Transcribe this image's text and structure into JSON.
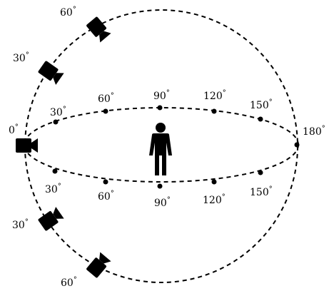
{
  "diagram": {
    "degree_symbol": "°",
    "equator_top_labels": [
      "30",
      "60",
      "90",
      "120",
      "150"
    ],
    "equator_bottom_labels": [
      "30",
      "60",
      "90",
      "120",
      "150"
    ],
    "meridian_upper_labels": [
      "30",
      "60"
    ],
    "meridian_lower_labels": [
      "30",
      "60"
    ],
    "left_label": "0",
    "right_label": "180",
    "icons": {
      "person": "person-icon",
      "camera": "video-camera-icon"
    }
  }
}
